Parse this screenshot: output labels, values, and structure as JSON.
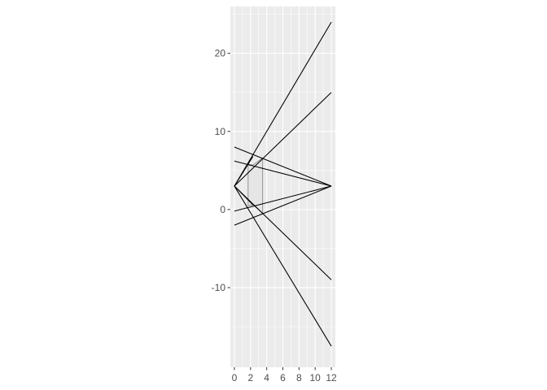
{
  "chart_data": {
    "type": "line",
    "title": "",
    "xlabel": "",
    "ylabel": "",
    "xlim": [
      -0.5,
      12.5
    ],
    "ylim": [
      -20.2,
      26.0
    ],
    "x_ticks": [
      0,
      2,
      4,
      6,
      8,
      10,
      12
    ],
    "x_tick_labels": [
      "0",
      "2",
      "4",
      "6",
      "8",
      "10",
      "12"
    ],
    "y_ticks": [
      -10,
      0,
      10,
      20
    ],
    "y_tick_labels": [
      "-10",
      "0",
      "10",
      "20"
    ],
    "grid": true,
    "legend": "none",
    "colors": {
      "panel": "#ebebeb",
      "grid": "#ffffff",
      "line": "#000000",
      "polygon_fill": "#e6e6e6",
      "polygon_stroke": "#7f7f7f",
      "tick_text": "#4d4d4d",
      "tick_mark": "#333333"
    },
    "polygon": [
      [
        1.7,
        0.5
      ],
      [
        1.7,
        5.8
      ],
      [
        2.3,
        5.7
      ],
      [
        3.5,
        6.6
      ],
      [
        3.5,
        -0.5
      ],
      [
        2.3,
        0.6
      ]
    ],
    "series": [
      {
        "x": [
          0,
          12
        ],
        "y": [
          3,
          24
        ]
      },
      {
        "x": [
          0,
          12
        ],
        "y": [
          3,
          15
        ]
      },
      {
        "x": [
          0,
          12
        ],
        "y": [
          3,
          -9
        ]
      },
      {
        "x": [
          0,
          12
        ],
        "y": [
          3,
          -17.5
        ]
      },
      {
        "x": [
          0,
          12
        ],
        "y": [
          8,
          3
        ]
      },
      {
        "x": [
          0,
          12
        ],
        "y": [
          6.2,
          3
        ]
      },
      {
        "x": [
          0,
          12
        ],
        "y": [
          -0.2,
          3
        ]
      },
      {
        "x": [
          0,
          12
        ],
        "y": [
          -2,
          3
        ]
      },
      {
        "x": [
          0,
          2.3
        ],
        "y": [
          3,
          6.8
        ]
      },
      {
        "x": [
          0,
          2.3
        ],
        "y": [
          3,
          0.6
        ]
      }
    ]
  }
}
